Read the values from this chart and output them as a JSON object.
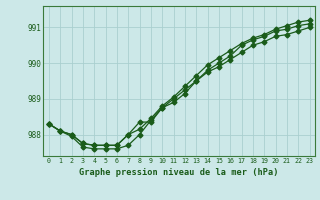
{
  "title": "Graphe pression niveau de la mer (hPa)",
  "background_color": "#cce8e8",
  "grid_color": "#aacfcf",
  "line_color": "#1a5c1a",
  "x_ticks": [
    0,
    1,
    2,
    3,
    4,
    5,
    6,
    7,
    8,
    9,
    10,
    11,
    12,
    13,
    14,
    15,
    16,
    17,
    18,
    19,
    20,
    21,
    22,
    23
  ],
  "y_ticks": [
    988,
    989,
    990,
    991
  ],
  "ylim": [
    987.4,
    991.6
  ],
  "xlim": [
    -0.5,
    23.5
  ],
  "series": [
    [
      988.3,
      988.1,
      988.0,
      987.75,
      987.7,
      987.7,
      987.7,
      988.0,
      988.35,
      988.35,
      988.75,
      988.9,
      989.15,
      989.5,
      989.8,
      990.0,
      990.2,
      990.5,
      990.65,
      990.75,
      990.9,
      990.95,
      991.05,
      991.1
    ],
    [
      988.3,
      988.1,
      987.95,
      987.65,
      987.6,
      987.6,
      987.6,
      987.7,
      988.0,
      988.4,
      988.75,
      989.0,
      989.25,
      989.5,
      989.75,
      989.9,
      990.1,
      990.3,
      990.5,
      990.6,
      990.75,
      990.8,
      990.9,
      991.0
    ],
    [
      988.3,
      988.1,
      988.0,
      987.75,
      987.7,
      987.7,
      987.7,
      988.0,
      988.15,
      988.45,
      988.8,
      989.05,
      989.35,
      989.65,
      989.95,
      990.15,
      990.35,
      990.55,
      990.7,
      990.8,
      990.95,
      991.05,
      991.15,
      991.2
    ]
  ]
}
